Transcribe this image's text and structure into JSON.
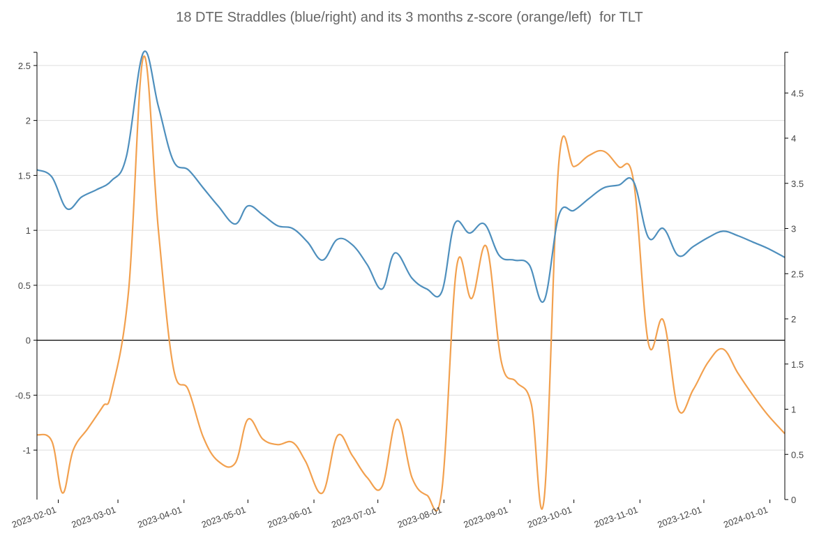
{
  "chart_data": {
    "type": "line",
    "title": "18 DTE Straddles (blue/right) and its 3 months z-score (orange/left)  for TLT",
    "xlabel": "",
    "ylabel_left": "",
    "ylabel_right": "",
    "x_range": [
      "2023-01-22",
      "2024-01-08"
    ],
    "ylim_left": [
      -1.45,
      2.62
    ],
    "ylim_right": [
      0,
      4.95
    ],
    "grid": true,
    "zero_line_left": true,
    "x_ticks": [
      "2023-02-01",
      "2023-03-01",
      "2023-04-01",
      "2023-05-01",
      "2023-06-01",
      "2023-07-01",
      "2023-08-01",
      "2023-09-01",
      "2023-10-01",
      "2023-11-01",
      "2023-12-01",
      "2024-01-01"
    ],
    "y_ticks_left": [
      "2.5",
      "2",
      "1.5",
      "1",
      "0.5",
      "0",
      "-0.5",
      "-1"
    ],
    "y_ticks_right": [
      "4.5",
      "4",
      "3.5",
      "3",
      "2.5",
      "2",
      "1.5",
      "1",
      "0.5",
      "0"
    ],
    "colors": {
      "straddle": "#4e8fbd",
      "zscore": "#f2a04e",
      "grid": "#dddddd",
      "axis": "#000000"
    },
    "series": [
      {
        "axis": "right",
        "color": "#4e8fbd",
        "points": [
          [
            "2023-01-22",
            3.65
          ],
          [
            "2023-01-29",
            3.57
          ],
          [
            "2023-02-05",
            3.22
          ],
          [
            "2023-02-12",
            3.35
          ],
          [
            "2023-02-19",
            3.43
          ],
          [
            "2023-02-26",
            3.53
          ],
          [
            "2023-03-05",
            3.8
          ],
          [
            "2023-03-13",
            4.95
          ],
          [
            "2023-03-20",
            4.35
          ],
          [
            "2023-03-27",
            3.75
          ],
          [
            "2023-04-03",
            3.65
          ],
          [
            "2023-04-10",
            3.45
          ],
          [
            "2023-04-17",
            3.25
          ],
          [
            "2023-04-25",
            3.05
          ],
          [
            "2023-05-01",
            3.25
          ],
          [
            "2023-05-08",
            3.15
          ],
          [
            "2023-05-15",
            3.03
          ],
          [
            "2023-05-22",
            3.0
          ],
          [
            "2023-05-29",
            2.85
          ],
          [
            "2023-06-05",
            2.65
          ],
          [
            "2023-06-12",
            2.88
          ],
          [
            "2023-06-19",
            2.82
          ],
          [
            "2023-06-26",
            2.6
          ],
          [
            "2023-07-03",
            2.33
          ],
          [
            "2023-07-09",
            2.73
          ],
          [
            "2023-07-17",
            2.45
          ],
          [
            "2023-07-24",
            2.33
          ],
          [
            "2023-07-31",
            2.3
          ],
          [
            "2023-08-06",
            3.05
          ],
          [
            "2023-08-13",
            2.95
          ],
          [
            "2023-08-20",
            3.05
          ],
          [
            "2023-08-27",
            2.7
          ],
          [
            "2023-09-03",
            2.65
          ],
          [
            "2023-09-10",
            2.6
          ],
          [
            "2023-09-17",
            2.2
          ],
          [
            "2023-09-24",
            3.15
          ],
          [
            "2023-10-01",
            3.2
          ],
          [
            "2023-10-08",
            3.33
          ],
          [
            "2023-10-15",
            3.45
          ],
          [
            "2023-10-22",
            3.48
          ],
          [
            "2023-10-29",
            3.52
          ],
          [
            "2023-11-05",
            2.9
          ],
          [
            "2023-11-12",
            3.0
          ],
          [
            "2023-11-19",
            2.7
          ],
          [
            "2023-11-26",
            2.8
          ],
          [
            "2023-12-03",
            2.9
          ],
          [
            "2023-12-10",
            2.97
          ],
          [
            "2023-12-17",
            2.92
          ],
          [
            "2023-12-24",
            2.85
          ],
          [
            "2023-12-31",
            2.78
          ],
          [
            "2024-01-08",
            2.68
          ]
        ]
      },
      {
        "axis": "left",
        "color": "#f2a04e",
        "points": [
          [
            "2023-01-22",
            -0.86
          ],
          [
            "2023-01-29",
            -0.92
          ],
          [
            "2023-02-03",
            -1.39
          ],
          [
            "2023-02-08",
            -1.0
          ],
          [
            "2023-02-15",
            -0.8
          ],
          [
            "2023-02-22",
            -0.6
          ],
          [
            "2023-02-26",
            -0.47
          ],
          [
            "2023-03-06",
            0.45
          ],
          [
            "2023-03-13",
            2.58
          ],
          [
            "2023-03-20",
            1.0
          ],
          [
            "2023-03-27",
            -0.25
          ],
          [
            "2023-04-03",
            -0.45
          ],
          [
            "2023-04-10",
            -0.88
          ],
          [
            "2023-04-17",
            -1.1
          ],
          [
            "2023-04-25",
            -1.12
          ],
          [
            "2023-05-01",
            -0.72
          ],
          [
            "2023-05-08",
            -0.9
          ],
          [
            "2023-05-15",
            -0.95
          ],
          [
            "2023-05-22",
            -0.93
          ],
          [
            "2023-05-28",
            -1.1
          ],
          [
            "2023-06-05",
            -1.39
          ],
          [
            "2023-06-12",
            -0.87
          ],
          [
            "2023-06-19",
            -1.05
          ],
          [
            "2023-06-26",
            -1.25
          ],
          [
            "2023-07-03",
            -1.33
          ],
          [
            "2023-07-10",
            -0.72
          ],
          [
            "2023-07-17",
            -1.25
          ],
          [
            "2023-07-24",
            -1.41
          ],
          [
            "2023-07-31",
            -1.37
          ],
          [
            "2023-08-07",
            0.67
          ],
          [
            "2023-08-14",
            0.38
          ],
          [
            "2023-08-21",
            0.85
          ],
          [
            "2023-08-28",
            -0.2
          ],
          [
            "2023-09-04",
            -0.38
          ],
          [
            "2023-09-11",
            -0.58
          ],
          [
            "2023-09-17",
            -1.45
          ],
          [
            "2023-09-24",
            1.63
          ],
          [
            "2023-10-01",
            1.58
          ],
          [
            "2023-10-08",
            1.68
          ],
          [
            "2023-10-15",
            1.72
          ],
          [
            "2023-10-22",
            1.58
          ],
          [
            "2023-10-29",
            1.45
          ],
          [
            "2023-11-05",
            -0.03
          ],
          [
            "2023-11-12",
            0.18
          ],
          [
            "2023-11-19",
            -0.63
          ],
          [
            "2023-11-26",
            -0.45
          ],
          [
            "2023-12-03",
            -0.2
          ],
          [
            "2023-12-10",
            -0.08
          ],
          [
            "2023-12-17",
            -0.3
          ],
          [
            "2023-12-24",
            -0.5
          ],
          [
            "2023-12-31",
            -0.68
          ],
          [
            "2024-01-08",
            -0.85
          ]
        ]
      }
    ]
  }
}
